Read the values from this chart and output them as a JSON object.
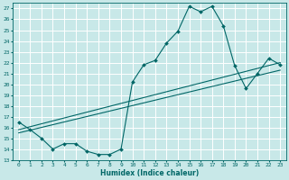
{
  "xlabel": "Humidex (Indice chaleur)",
  "ylabel": "",
  "xlim": [
    -0.5,
    23.5
  ],
  "ylim": [
    13,
    27.5
  ],
  "yticks": [
    13,
    14,
    15,
    16,
    17,
    18,
    19,
    20,
    21,
    22,
    23,
    24,
    25,
    26,
    27
  ],
  "xticks": [
    0,
    1,
    2,
    3,
    4,
    5,
    6,
    7,
    8,
    9,
    10,
    11,
    12,
    13,
    14,
    15,
    16,
    17,
    18,
    19,
    20,
    21,
    22,
    23
  ],
  "bg_color": "#c8e8e8",
  "line_color": "#006666",
  "grid_color": "#ffffff",
  "line1_x": [
    0,
    1,
    2,
    3,
    4,
    5,
    6,
    7,
    8,
    9,
    10,
    11,
    12,
    13,
    14,
    15,
    16,
    17,
    18,
    19,
    20,
    21,
    22,
    23
  ],
  "line1_y": [
    16.5,
    15.8,
    15.0,
    14.0,
    14.5,
    14.5,
    13.8,
    13.5,
    13.5,
    14.0,
    20.2,
    21.8,
    22.2,
    23.8,
    24.9,
    27.2,
    26.7,
    27.2,
    25.4,
    21.7,
    19.6,
    21.0,
    22.4,
    21.8
  ],
  "line2_x": [
    0,
    23
  ],
  "line2_y": [
    15.8,
    22.0
  ],
  "line3_x": [
    0,
    23
  ],
  "line3_y": [
    15.5,
    21.3
  ]
}
